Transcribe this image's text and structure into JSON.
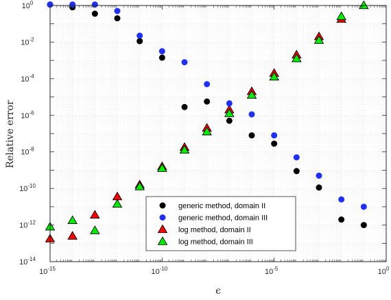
{
  "chart_data": {
    "type": "scatter",
    "xlabel": "ϵ",
    "ylabel": "Relative error",
    "xscale": "log",
    "yscale": "log",
    "xlim_exp": [
      -15,
      0
    ],
    "ylim_exp": [
      -14,
      0
    ],
    "grid": true,
    "legend_position": "bottom-right",
    "x_ticks": [
      {
        "exp": -15,
        "base": "10",
        "sup": "-15"
      },
      {
        "exp": -10,
        "base": "10",
        "sup": "-10"
      },
      {
        "exp": -5,
        "base": "10",
        "sup": "-5"
      },
      {
        "exp": 0,
        "base": "10",
        "sup": "0"
      }
    ],
    "y_ticks": [
      {
        "exp": -14,
        "base": "10",
        "sup": "-14"
      },
      {
        "exp": -12,
        "base": "10",
        "sup": "-12"
      },
      {
        "exp": -10,
        "base": "10",
        "sup": "-10"
      },
      {
        "exp": -8,
        "base": "10",
        "sup": "-8"
      },
      {
        "exp": -6,
        "base": "10",
        "sup": "-6"
      },
      {
        "exp": -4,
        "base": "10",
        "sup": "-4"
      },
      {
        "exp": -2,
        "base": "10",
        "sup": "-2"
      },
      {
        "exp": 0,
        "base": "10",
        "sup": "0"
      }
    ],
    "series": [
      {
        "name": "generic method, domain II",
        "marker": "circle",
        "color": "#000000",
        "x_exp": [
          -15,
          -14,
          -13,
          -12,
          -11,
          -10,
          -9,
          -8,
          -7,
          -6,
          -5,
          -4,
          -3,
          -2,
          -1
        ],
        "y_exp": [
          0.05,
          -0.1,
          -0.45,
          -0.7,
          -1.95,
          -2.85,
          -5.55,
          -5.25,
          -6.3,
          -7.1,
          -7.55,
          -9.05,
          -9.95,
          -11.7,
          -12.0
        ]
      },
      {
        "name": "generic method, domain III",
        "marker": "circle",
        "color": "#1f2fff",
        "x_exp": [
          -15,
          -14,
          -13,
          -12,
          -11,
          -10,
          -9,
          -8,
          -7,
          -6,
          -5,
          -4,
          -3,
          -2,
          -1
        ],
        "y_exp": [
          0.05,
          0.05,
          0.05,
          -0.3,
          -1.65,
          -2.5,
          -3.1,
          -4.3,
          -5.35,
          -5.95,
          -7.1,
          -8.3,
          -9.3,
          -10.6,
          -11.0
        ]
      },
      {
        "name": "log method, domain II",
        "marker": "triangle",
        "color": "#ff0000",
        "x_exp": [
          -15,
          -14,
          -13,
          -12,
          -11,
          -10,
          -9,
          -8,
          -7,
          -6,
          -5,
          -4,
          -3,
          -2,
          -1
        ],
        "y_exp": [
          -12.75,
          -12.6,
          -11.45,
          -10.45,
          -9.8,
          -8.8,
          -7.75,
          -6.7,
          -5.7,
          -4.7,
          -3.7,
          -2.7,
          -1.7,
          -0.75,
          0.3
        ]
      },
      {
        "name": "log method, domain III",
        "marker": "triangle",
        "color": "#00ee00",
        "x_exp": [
          -15,
          -14,
          -13,
          -12,
          -11,
          -10,
          -9,
          -8,
          -7,
          -6,
          -5,
          -4,
          -3,
          -2,
          -1
        ],
        "y_exp": [
          -12.1,
          -11.75,
          -12.3,
          -10.85,
          -9.9,
          -8.9,
          -7.9,
          -6.9,
          -5.9,
          -4.9,
          -3.9,
          -2.9,
          -1.9,
          -0.6,
          0.0
        ]
      }
    ]
  }
}
